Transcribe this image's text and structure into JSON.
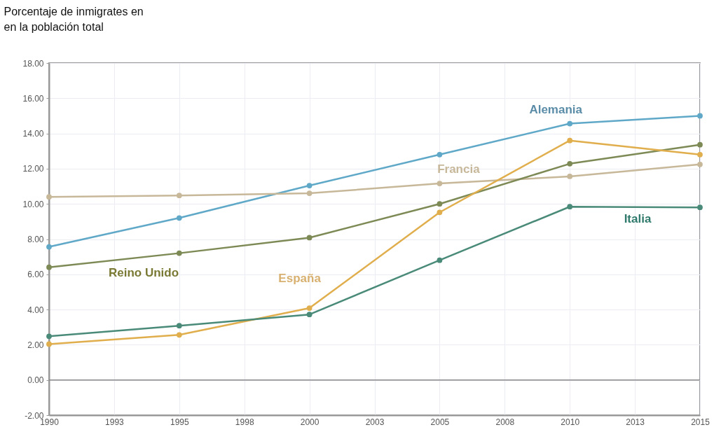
{
  "chart_data": {
    "type": "line",
    "ylabel": "Porcentaje de inmigrates en\n en  la población  total",
    "x": [
      1990,
      1995,
      2000,
      2005,
      2010,
      2015
    ],
    "series": [
      {
        "name": "Alemania",
        "color": "#5fa8c8",
        "values": [
          7.56,
          9.2,
          11.04,
          12.8,
          14.56,
          15.0
        ]
      },
      {
        "name": "Francia",
        "color": "#c8b89a",
        "values": [
          10.4,
          10.48,
          10.6,
          11.16,
          11.56,
          12.24
        ]
      },
      {
        "name": "Reino Unido",
        "color": "#7d8a55",
        "values": [
          6.4,
          7.2,
          8.08,
          10.0,
          12.28,
          13.36
        ]
      },
      {
        "name": "España",
        "color": "#e0ae4c",
        "values": [
          2.04,
          2.56,
          4.08,
          9.52,
          13.6,
          12.8
        ]
      },
      {
        "name": "Italia",
        "color": "#4a8a78",
        "values": [
          2.48,
          3.08,
          3.72,
          6.8,
          9.84,
          9.8
        ]
      }
    ],
    "xlim": [
      1990,
      2015
    ],
    "xticks": [
      1990,
      {
        "value": 1992.5,
        "label": "1993"
      },
      1995,
      {
        "value": 1997.5,
        "label": "1998"
      },
      2000,
      {
        "value": 2002.5,
        "label": "2003"
      },
      2005,
      {
        "value": 2007.5,
        "label": "2008"
      },
      2010,
      {
        "value": 2012.5,
        "label": "2013"
      },
      2015
    ],
    "ylim": [
      -2,
      18
    ],
    "yticks": [
      {
        "value": -2,
        "label": "-2.00"
      },
      {
        "value": 0,
        "label": "0.00"
      },
      {
        "value": 2,
        "label": "2.00"
      },
      {
        "value": 4,
        "label": "4.00"
      },
      {
        "value": 6,
        "label": "6.00"
      },
      {
        "value": 8,
        "label": "8.00"
      },
      {
        "value": 10,
        "label": "10.00"
      },
      {
        "value": 12,
        "label": "12.00"
      },
      {
        "value": 14,
        "label": "14.00"
      },
      {
        "value": 16,
        "label": "16.00"
      },
      {
        "value": 18,
        "label": "18.00"
      }
    ],
    "ref_lines": [
      {
        "axis": "y",
        "value": 0,
        "color": "#888888"
      }
    ],
    "grid": true,
    "marker": "circle",
    "line_style": "solid"
  }
}
